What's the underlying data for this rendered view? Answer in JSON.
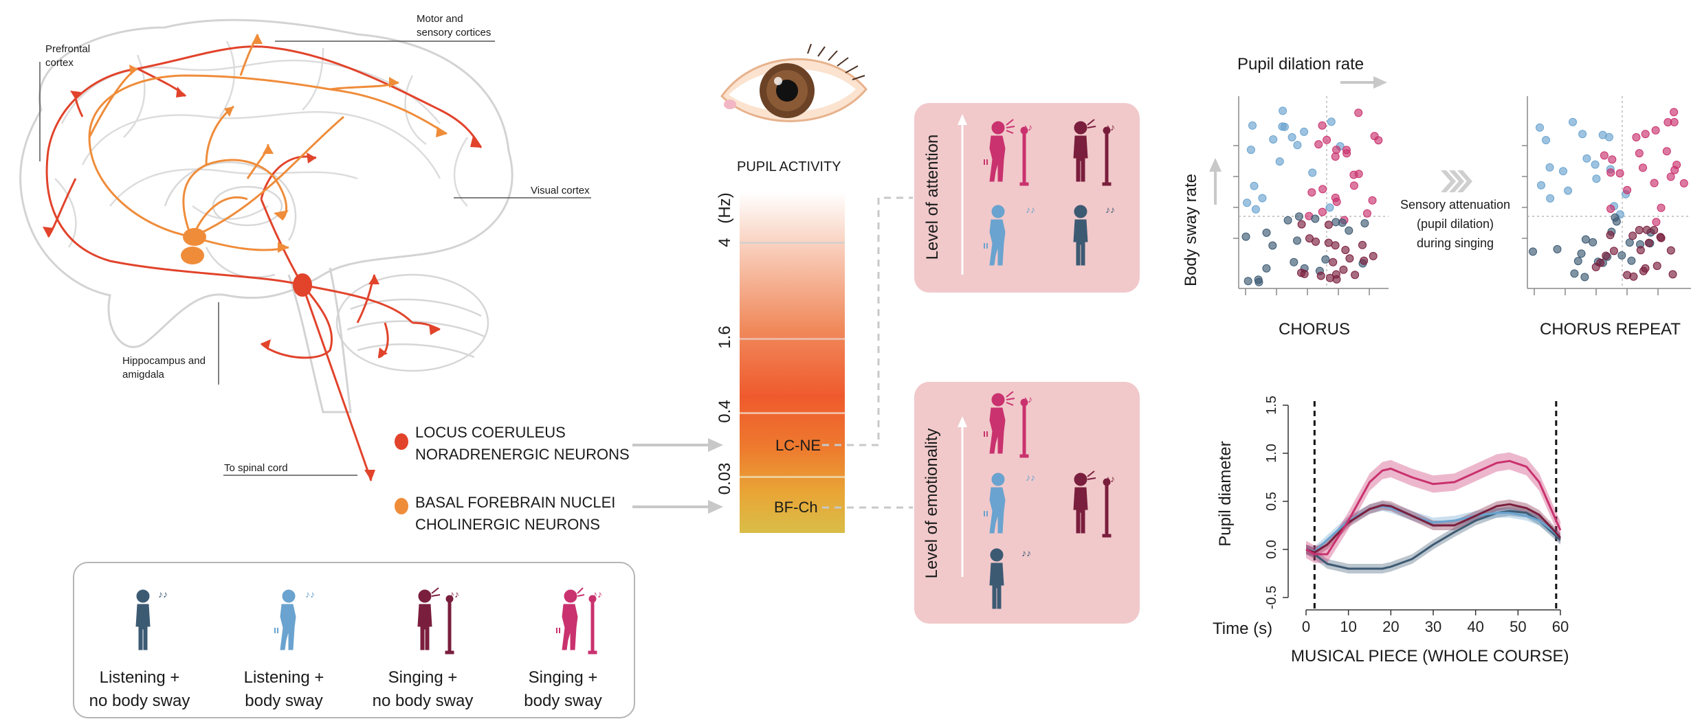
{
  "brain": {
    "labels": {
      "prefrontal": "Prefrontal\ncortex",
      "motor": "Motor and\nsensory cortices",
      "visual": "Visual cortex",
      "hippocampus": "Hippocampus and\namigdala",
      "spinal": "To spinal cord"
    },
    "legend": {
      "lc_line1": "LOCUS COERULEUS",
      "lc_line2": "NORADRENERGIC NEURONS",
      "bf_line1": "BASAL FOREBRAIN NUCLEI",
      "bf_line2": "CHOLINERGIC NEURONS"
    },
    "colors": {
      "lc": "#e1432b",
      "bf": "#ef8c3a"
    }
  },
  "pupil": {
    "title": "PUPIL ACTIVITY",
    "unit": "(Hz)",
    "ticks": [
      "4",
      "1.6",
      "0.4",
      "0.03"
    ],
    "lc_label": "LC-NE",
    "bf_label": "BF-Ch"
  },
  "panels": {
    "attention": "Level of attention",
    "emotionality": "Level of emotionality"
  },
  "conditions": [
    {
      "line1": "Listening +",
      "line2": "no body sway",
      "color": "#3d5a73"
    },
    {
      "line1": "Listening +",
      "line2": "body sway",
      "color": "#6aa3cf"
    },
    {
      "line1": "Singing +",
      "line2": "no body sway",
      "color": "#7a1e3d"
    },
    {
      "line1": "Singing +",
      "line2": "body sway",
      "color": "#c9326e"
    }
  ],
  "scatter": {
    "top_label": "Pupil dilation rate",
    "y_label": "Body sway rate",
    "left_title": "CHORUS",
    "right_title": "CHORUS REPEAT",
    "middle_line1": "Sensory attenuation",
    "middle_line2": "(pupil dilation)",
    "middle_line3": "during singing"
  },
  "chart_data": {
    "type": "line",
    "title": "",
    "xlabel": "MUSICAL PIECE (WHOLE COURSE)",
    "xprefix": "Time (s)",
    "ylabel": "Pupil diameter",
    "xlim": [
      0,
      60
    ],
    "ylim": [
      -0.5,
      1.5
    ],
    "xticks": [
      0,
      10,
      20,
      30,
      40,
      50,
      60
    ],
    "yticks": [
      -0.5,
      0.0,
      0.5,
      1.0,
      1.5
    ],
    "vlines": [
      2,
      59
    ],
    "x": [
      0,
      2,
      5,
      10,
      15,
      18,
      20,
      25,
      30,
      35,
      40,
      45,
      48,
      52,
      55,
      58,
      60
    ],
    "series": [
      {
        "color": "#3d5a73",
        "values": [
          0.0,
          -0.05,
          -0.15,
          -0.2,
          -0.2,
          -0.2,
          -0.18,
          -0.1,
          0.05,
          0.18,
          0.3,
          0.38,
          0.4,
          0.38,
          0.3,
          0.18,
          0.1
        ]
      },
      {
        "color": "#6aa3cf",
        "values": [
          0.0,
          -0.02,
          0.1,
          0.3,
          0.42,
          0.45,
          0.43,
          0.35,
          0.28,
          0.3,
          0.35,
          0.38,
          0.38,
          0.35,
          0.3,
          0.2,
          0.12
        ]
      },
      {
        "color": "#7a1e3d",
        "values": [
          0.0,
          -0.03,
          0.05,
          0.28,
          0.42,
          0.46,
          0.45,
          0.35,
          0.25,
          0.25,
          0.35,
          0.45,
          0.47,
          0.43,
          0.36,
          0.22,
          0.12
        ]
      },
      {
        "color": "#c9326e",
        "values": [
          0.0,
          -0.05,
          -0.05,
          0.3,
          0.7,
          0.82,
          0.84,
          0.75,
          0.68,
          0.7,
          0.8,
          0.9,
          0.92,
          0.86,
          0.7,
          0.4,
          0.2
        ]
      }
    ]
  }
}
